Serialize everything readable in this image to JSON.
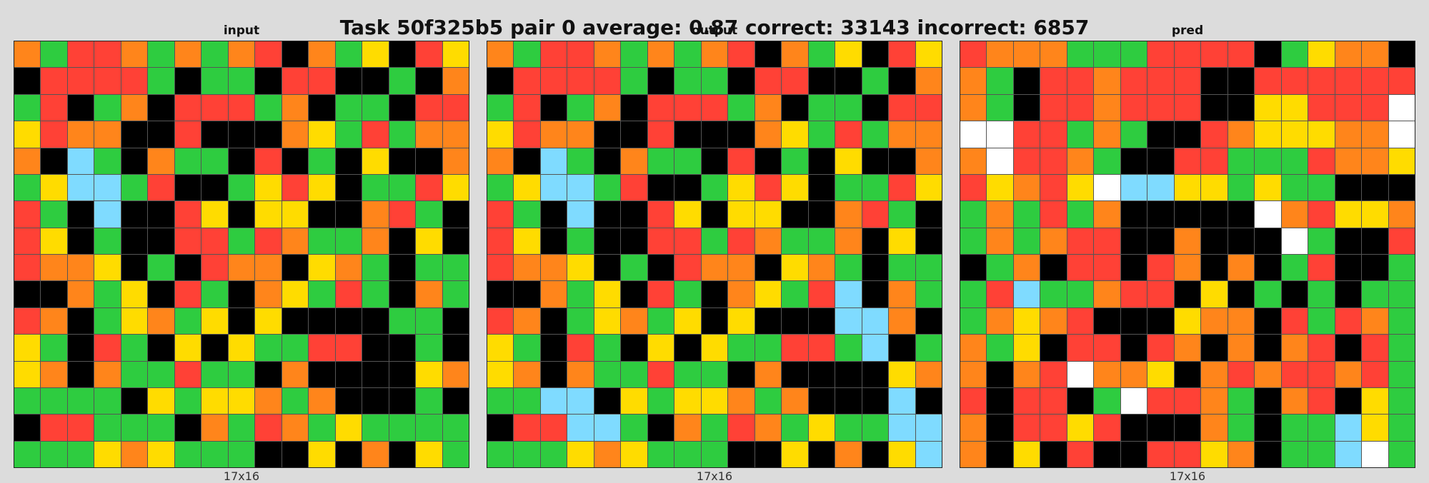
{
  "header": {
    "title": "Task 50f325b5 pair 0 average: 0.87 correct: 33143 incorrect: 6857"
  },
  "palette": {
    "0": "#000000",
    "1": "#2ecc40",
    "2": "#ff4136",
    "3": "#ff851b",
    "4": "#ffdc00",
    "5": "#7fdbff",
    "6": "#ffffff"
  },
  "panels": [
    {
      "label": "input",
      "dims": "17x16",
      "rows": [
        "31223131320314024",
        "02222101102200103",
        "12013022213011022",
        "42330020003412133",
        "30510311020104003",
        "14551200142401124",
        "21050024044003210",
        "24010022123113040",
        "23340102330431011",
        "00314021034121031",
        "23014314040000110",
        "41021040411220010",
        "43031121103000043",
        "11110414431300010",
        "02211103123141111",
        "11143411100403041"
      ]
    },
    {
      "label": "output",
      "dims": "17x16",
      "rows": [
        "31223131320314024",
        "02222101102200103",
        "12013022213011022",
        "42330020003412133",
        "30510311020104003",
        "14551200142401124",
        "21050024044003210",
        "24010022123113040",
        "23340102330431011",
        "00314021034125031",
        "23014314040005530",
        "41021040411221501",
        "43031121103000043",
        "11550414431300050",
        "02255103123141155",
        "11143411100403045"
      ]
    },
    {
      "label": "pred",
      "dims": "17x16",
      "rows": [
        "23331112222014330",
        "31022322200222222",
        "31022322200442226",
        "66221310023444336",
        "36223100221112334",
        "24324655441411000",
        "13121300000632443",
        "13132200300061002",
        "01302202303012001",
        "12511322040101011",
        "13432000433021231",
        "31402202303032021",
        "30326334032322321",
        "20220162231032041",
        "30224200031011541",
        "30402002243011561"
      ]
    }
  ]
}
